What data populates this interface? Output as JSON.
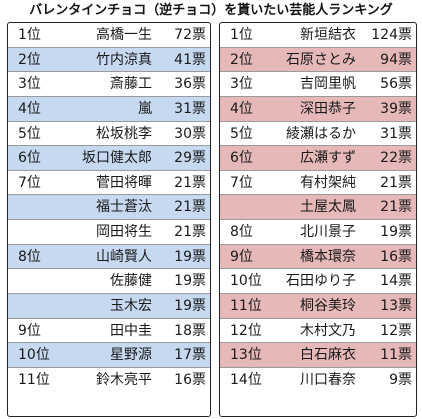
{
  "title": "バレンタインチョコ（逆チョコ）を貰いたい芸能人ランキング",
  "colors": {
    "left_highlight": "#c6d9f1",
    "right_highlight": "#e6b9b8"
  },
  "left_table": [
    {
      "rank": "1位",
      "name": "高橋一生",
      "votes": "72票",
      "hl": false
    },
    {
      "rank": "2位",
      "name": "竹内涼真",
      "votes": "41票",
      "hl": true
    },
    {
      "rank": "3位",
      "name": "斎藤工",
      "votes": "36票",
      "hl": false
    },
    {
      "rank": "4位",
      "name": "嵐",
      "votes": "31票",
      "hl": true
    },
    {
      "rank": "5位",
      "name": "松坂桃李",
      "votes": "30票",
      "hl": false
    },
    {
      "rank": "6位",
      "name": "坂口健太郎",
      "votes": "29票",
      "hl": true
    },
    {
      "rank": "7位",
      "name": "菅田将暉",
      "votes": "21票",
      "hl": false
    },
    {
      "rank": "",
      "name": "福士蒼汰",
      "votes": "21票",
      "hl": true
    },
    {
      "rank": "",
      "name": "岡田将生",
      "votes": "21票",
      "hl": false
    },
    {
      "rank": "8位",
      "name": "山崎賢人",
      "votes": "19票",
      "hl": true
    },
    {
      "rank": "",
      "name": "佐藤健",
      "votes": "19票",
      "hl": false
    },
    {
      "rank": "",
      "name": "玉木宏",
      "votes": "19票",
      "hl": true
    },
    {
      "rank": "9位",
      "name": "田中圭",
      "votes": "18票",
      "hl": false
    },
    {
      "rank": "10位",
      "name": "星野源",
      "votes": "17票",
      "hl": true
    },
    {
      "rank": "11位",
      "name": "鈴木亮平",
      "votes": "16票",
      "hl": false
    }
  ],
  "right_table": [
    {
      "rank": "1位",
      "name": "新垣結衣",
      "votes": "124票",
      "hl": false
    },
    {
      "rank": "2位",
      "name": "石原さとみ",
      "votes": "94票",
      "hl": true
    },
    {
      "rank": "3位",
      "name": "吉岡里帆",
      "votes": "56票",
      "hl": false
    },
    {
      "rank": "4位",
      "name": "深田恭子",
      "votes": "39票",
      "hl": true
    },
    {
      "rank": "5位",
      "name": "綾瀬はるか",
      "votes": "31票",
      "hl": false
    },
    {
      "rank": "6位",
      "name": "広瀬すず",
      "votes": "22票",
      "hl": true
    },
    {
      "rank": "7位",
      "name": "有村架純",
      "votes": "21票",
      "hl": false
    },
    {
      "rank": "",
      "name": "土屋太鳳",
      "votes": "21票",
      "hl": true
    },
    {
      "rank": "8位",
      "name": "北川景子",
      "votes": "19票",
      "hl": false
    },
    {
      "rank": "9位",
      "name": "橋本環奈",
      "votes": "16票",
      "hl": true
    },
    {
      "rank": "10位",
      "name": "石田ゆり子",
      "votes": "14票",
      "hl": false
    },
    {
      "rank": "11位",
      "name": "桐谷美玲",
      "votes": "13票",
      "hl": true
    },
    {
      "rank": "12位",
      "name": "木村文乃",
      "votes": "12票",
      "hl": false
    },
    {
      "rank": "13位",
      "name": "白石麻衣",
      "votes": "11票",
      "hl": true
    },
    {
      "rank": "14位",
      "name": "川口春奈",
      "votes": "9票",
      "hl": false
    }
  ]
}
